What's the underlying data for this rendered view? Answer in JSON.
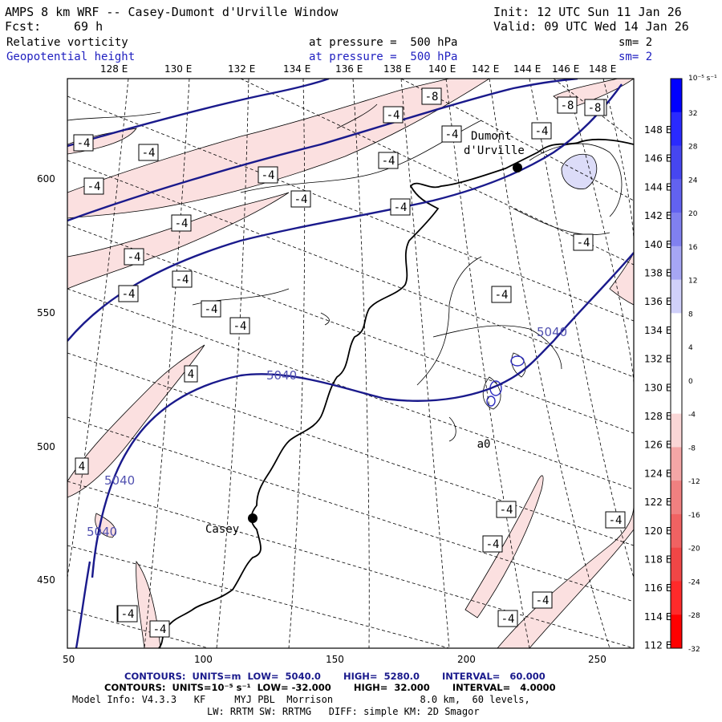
{
  "header": {
    "title": "AMPS 8 km WRF -- Casey-Dumont d'Urville Window",
    "init": "Init: 12 UTC Sun 11 Jan 26",
    "fcst_label": "Fcst:",
    "fcst_value": "69 h",
    "valid": "Valid: 09 UTC Wed 14 Jan 26",
    "field1": "Relative vorticity",
    "field1_level": "at pressure =  500 hPa",
    "field1_sm": "sm= 2",
    "field2": "Geopotential height",
    "field2_level": "at pressure =  500 hPa",
    "field2_sm": "sm= 2"
  },
  "lon_labels": [
    "128 E",
    "130 E",
    "132 E",
    "134 E",
    "136 E",
    "138 E",
    "140 E",
    "142 E",
    "144 E",
    "146 E",
    "148 E"
  ],
  "x_ticks": [
    "50",
    "100",
    "150",
    "200",
    "250"
  ],
  "y_ticks": [
    "600",
    "550",
    "500",
    "450"
  ],
  "lat_labels_right": [
    "148 E",
    "146 E",
    "144 E",
    "142 E",
    "140 E",
    "138 E",
    "136 E",
    "134 E",
    "132 E",
    "130 E",
    "128 E",
    "126 E",
    "124 E",
    "122 E",
    "120 E",
    "118 E",
    "116 E",
    "114 E",
    "112 E"
  ],
  "stations": [
    {
      "name": "Dumont",
      "name2": "d'Urville"
    },
    {
      "name": "Casey"
    }
  ],
  "contour_labels": {
    "height": [
      "5040",
      "5040",
      "5040",
      "5040"
    ],
    "vort": [
      "-4",
      "-8",
      "-4",
      "-4",
      "-4",
      "-4",
      "-8",
      "-4",
      "-4",
      "-4",
      "-4",
      "-4",
      "-4",
      "-4",
      "-4",
      "-4",
      "-4",
      "-4",
      "-4",
      "-8",
      "-4",
      "-4",
      "4",
      "4",
      "-4",
      "-4",
      "-4",
      "-4",
      "-4",
      "-4",
      "-4",
      "-4",
      "-4",
      "0"
    ]
  },
  "colorbar": {
    "unit": "10⁻⁵ s⁻¹",
    "labels": [
      "32",
      "28",
      "24",
      "20",
      "16",
      "12",
      "8",
      "4",
      "0",
      "-4",
      "-8",
      "-12",
      "-16",
      "-20",
      "-24",
      "-28",
      "-32"
    ],
    "colors": [
      "#0000ff",
      "#2a2aff",
      "#4646f0",
      "#6262f0",
      "#8080f0",
      "#a6a6f4",
      "#d0d0fa",
      "#ffffff",
      "#ffffff",
      "#ffffff",
      "#fad6d6",
      "#f4a6a6",
      "#f08080",
      "#f06262",
      "#f04646",
      "#ff2a2a",
      "#ff0000"
    ]
  },
  "footer": {
    "line1": "CONTOURS:  UNITS=m  LOW=  5040.0       HIGH=  5280.0       INTERVAL=   60.000",
    "line2": "CONTOURS:  UNITS=10⁻⁵ s⁻¹  LOW= -32.000       HIGH=  32.000       INTERVAL=   4.0000",
    "line3": "Model Info: V4.3.3   KF     MYJ PBL  Morrison               8.0 km,  60 levels,",
    "line4": "LW: RRTM SW: RRTMG   DIFF: simple KM: 2D Smagor"
  }
}
